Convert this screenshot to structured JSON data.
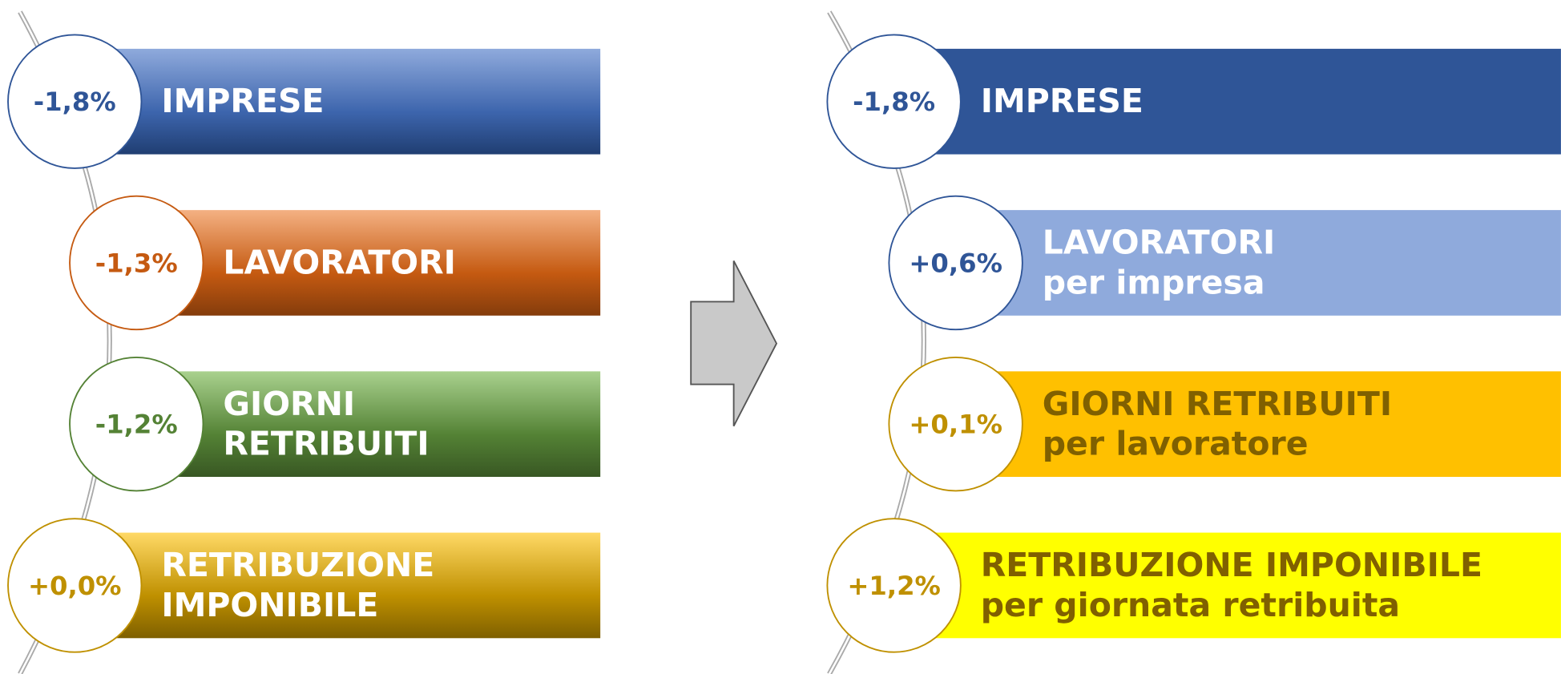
{
  "left": {
    "items": [
      {
        "value": "-1,8%",
        "label": [
          "IMPRESE"
        ]
      },
      {
        "value": "-1,3%",
        "label": [
          "LAVORATORI"
        ]
      },
      {
        "value": "-1,2%",
        "label": [
          "GIORNI",
          "RETRIBUITI"
        ]
      },
      {
        "value": "+0,0%",
        "label": [
          "RETRIBUZIONE",
          "IMPONIBILE"
        ]
      }
    ]
  },
  "right": {
    "items": [
      {
        "value": "-1,8%",
        "label": [
          "IMPRESE"
        ]
      },
      {
        "value": "+0,6%",
        "label": [
          "LAVORATORI",
          "per impresa"
        ]
      },
      {
        "value": "+0,1%",
        "label": [
          "GIORNI RETRIBUITI",
          "per lavoratore"
        ]
      },
      {
        "value": "+1,2%",
        "label": [
          "RETRIBUZIONE IMPONIBILE",
          "per giornata retribuita"
        ]
      }
    ]
  }
}
